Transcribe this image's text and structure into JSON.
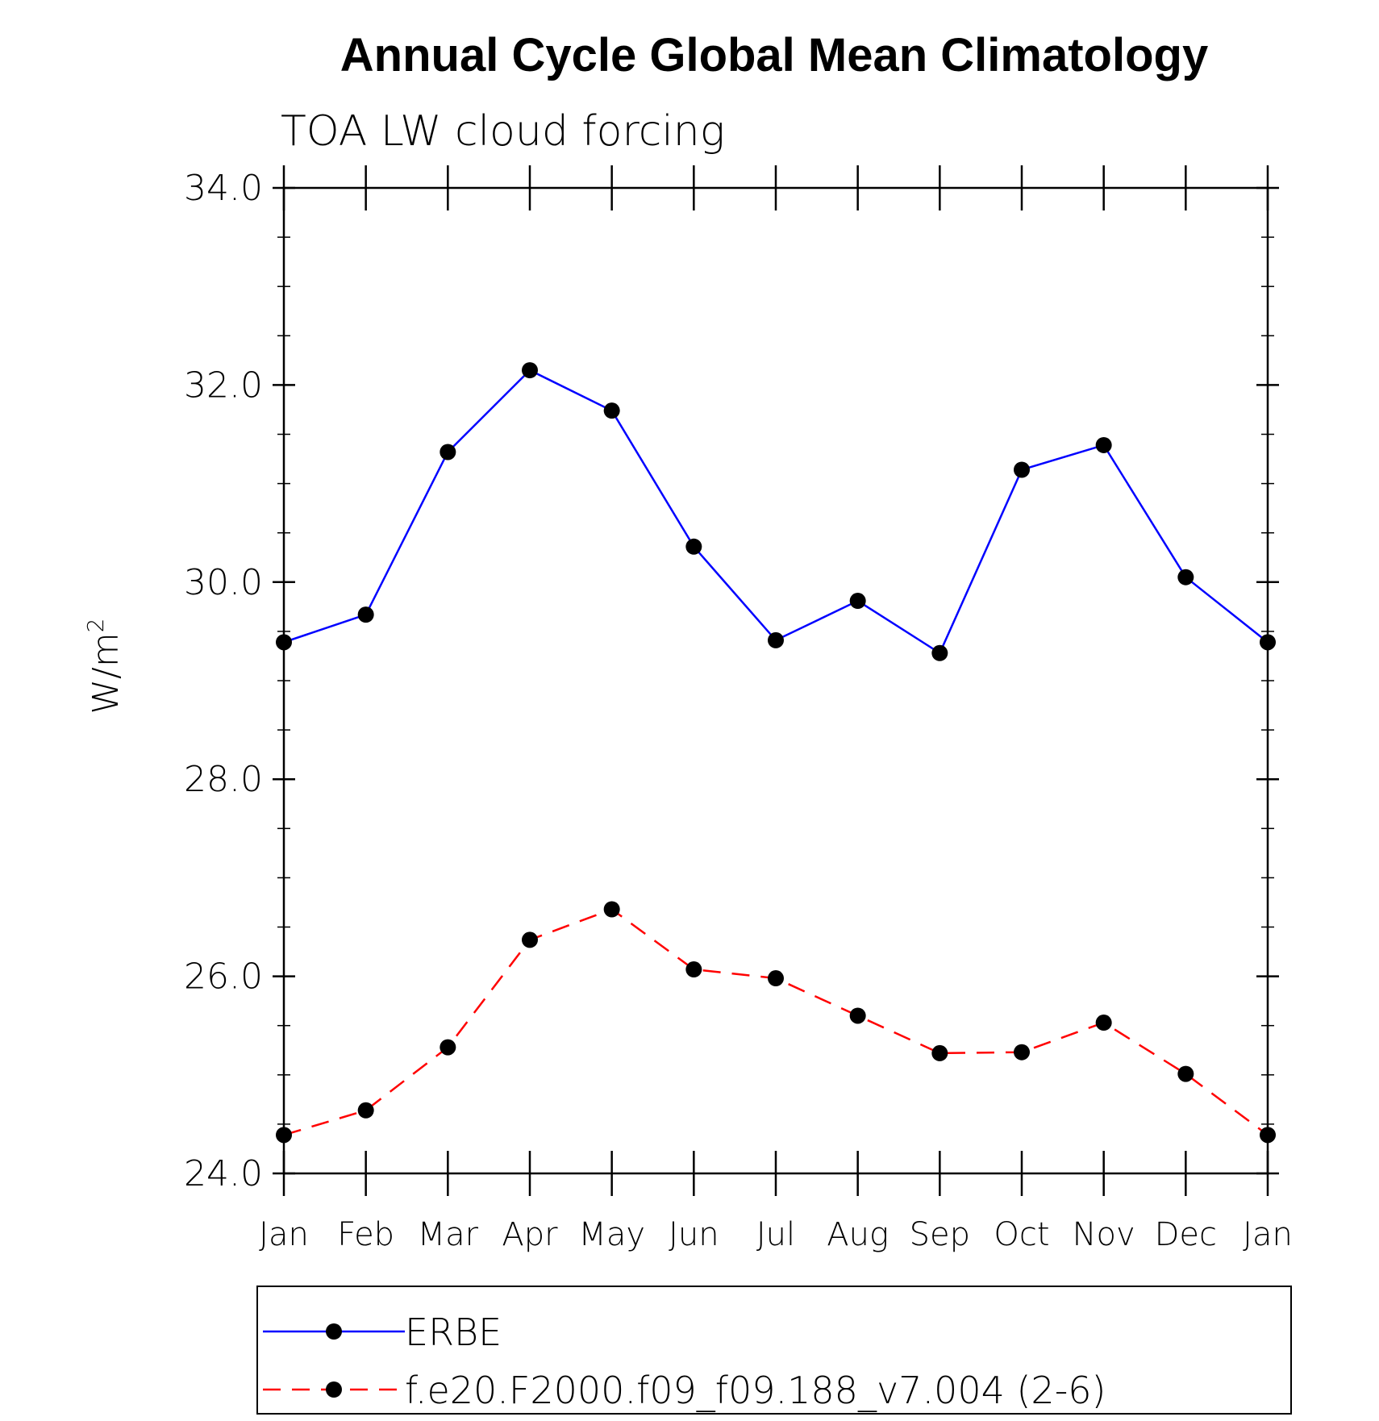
{
  "chart_data": {
    "type": "line",
    "title": "Annual Cycle Global Mean Climatology",
    "subtitle": "TOA LW cloud forcing",
    "ylabel": "W/m",
    "ylabel_superscript": "2",
    "xlabel": "",
    "categories": [
      "Jan",
      "Feb",
      "Mar",
      "Apr",
      "May",
      "Jun",
      "Jul",
      "Aug",
      "Sep",
      "Oct",
      "Nov",
      "Dec",
      "Jan"
    ],
    "ylim": [
      24.0,
      34.0
    ],
    "yticks": [
      "24.0",
      "26.0",
      "28.0",
      "30.0",
      "32.0",
      "34.0"
    ],
    "grid": false,
    "legend_position": "bottom",
    "series": [
      {
        "name": "ERBE",
        "color": "#0000ff",
        "line_style": "solid",
        "marker": "filled-circle",
        "values": [
          29.39,
          29.67,
          31.32,
          32.15,
          31.74,
          30.36,
          29.41,
          29.81,
          29.28,
          31.14,
          31.39,
          30.05,
          29.39
        ]
      },
      {
        "name": "f.e20.F2000.f09_f09.188_v7.004 (2-6)",
        "color": "#ff0000",
        "line_style": "dashed",
        "marker": "filled-circle",
        "values": [
          24.39,
          24.64,
          25.28,
          26.37,
          26.68,
          26.07,
          25.98,
          25.6,
          25.22,
          25.23,
          25.53,
          25.01,
          24.39
        ]
      }
    ]
  }
}
